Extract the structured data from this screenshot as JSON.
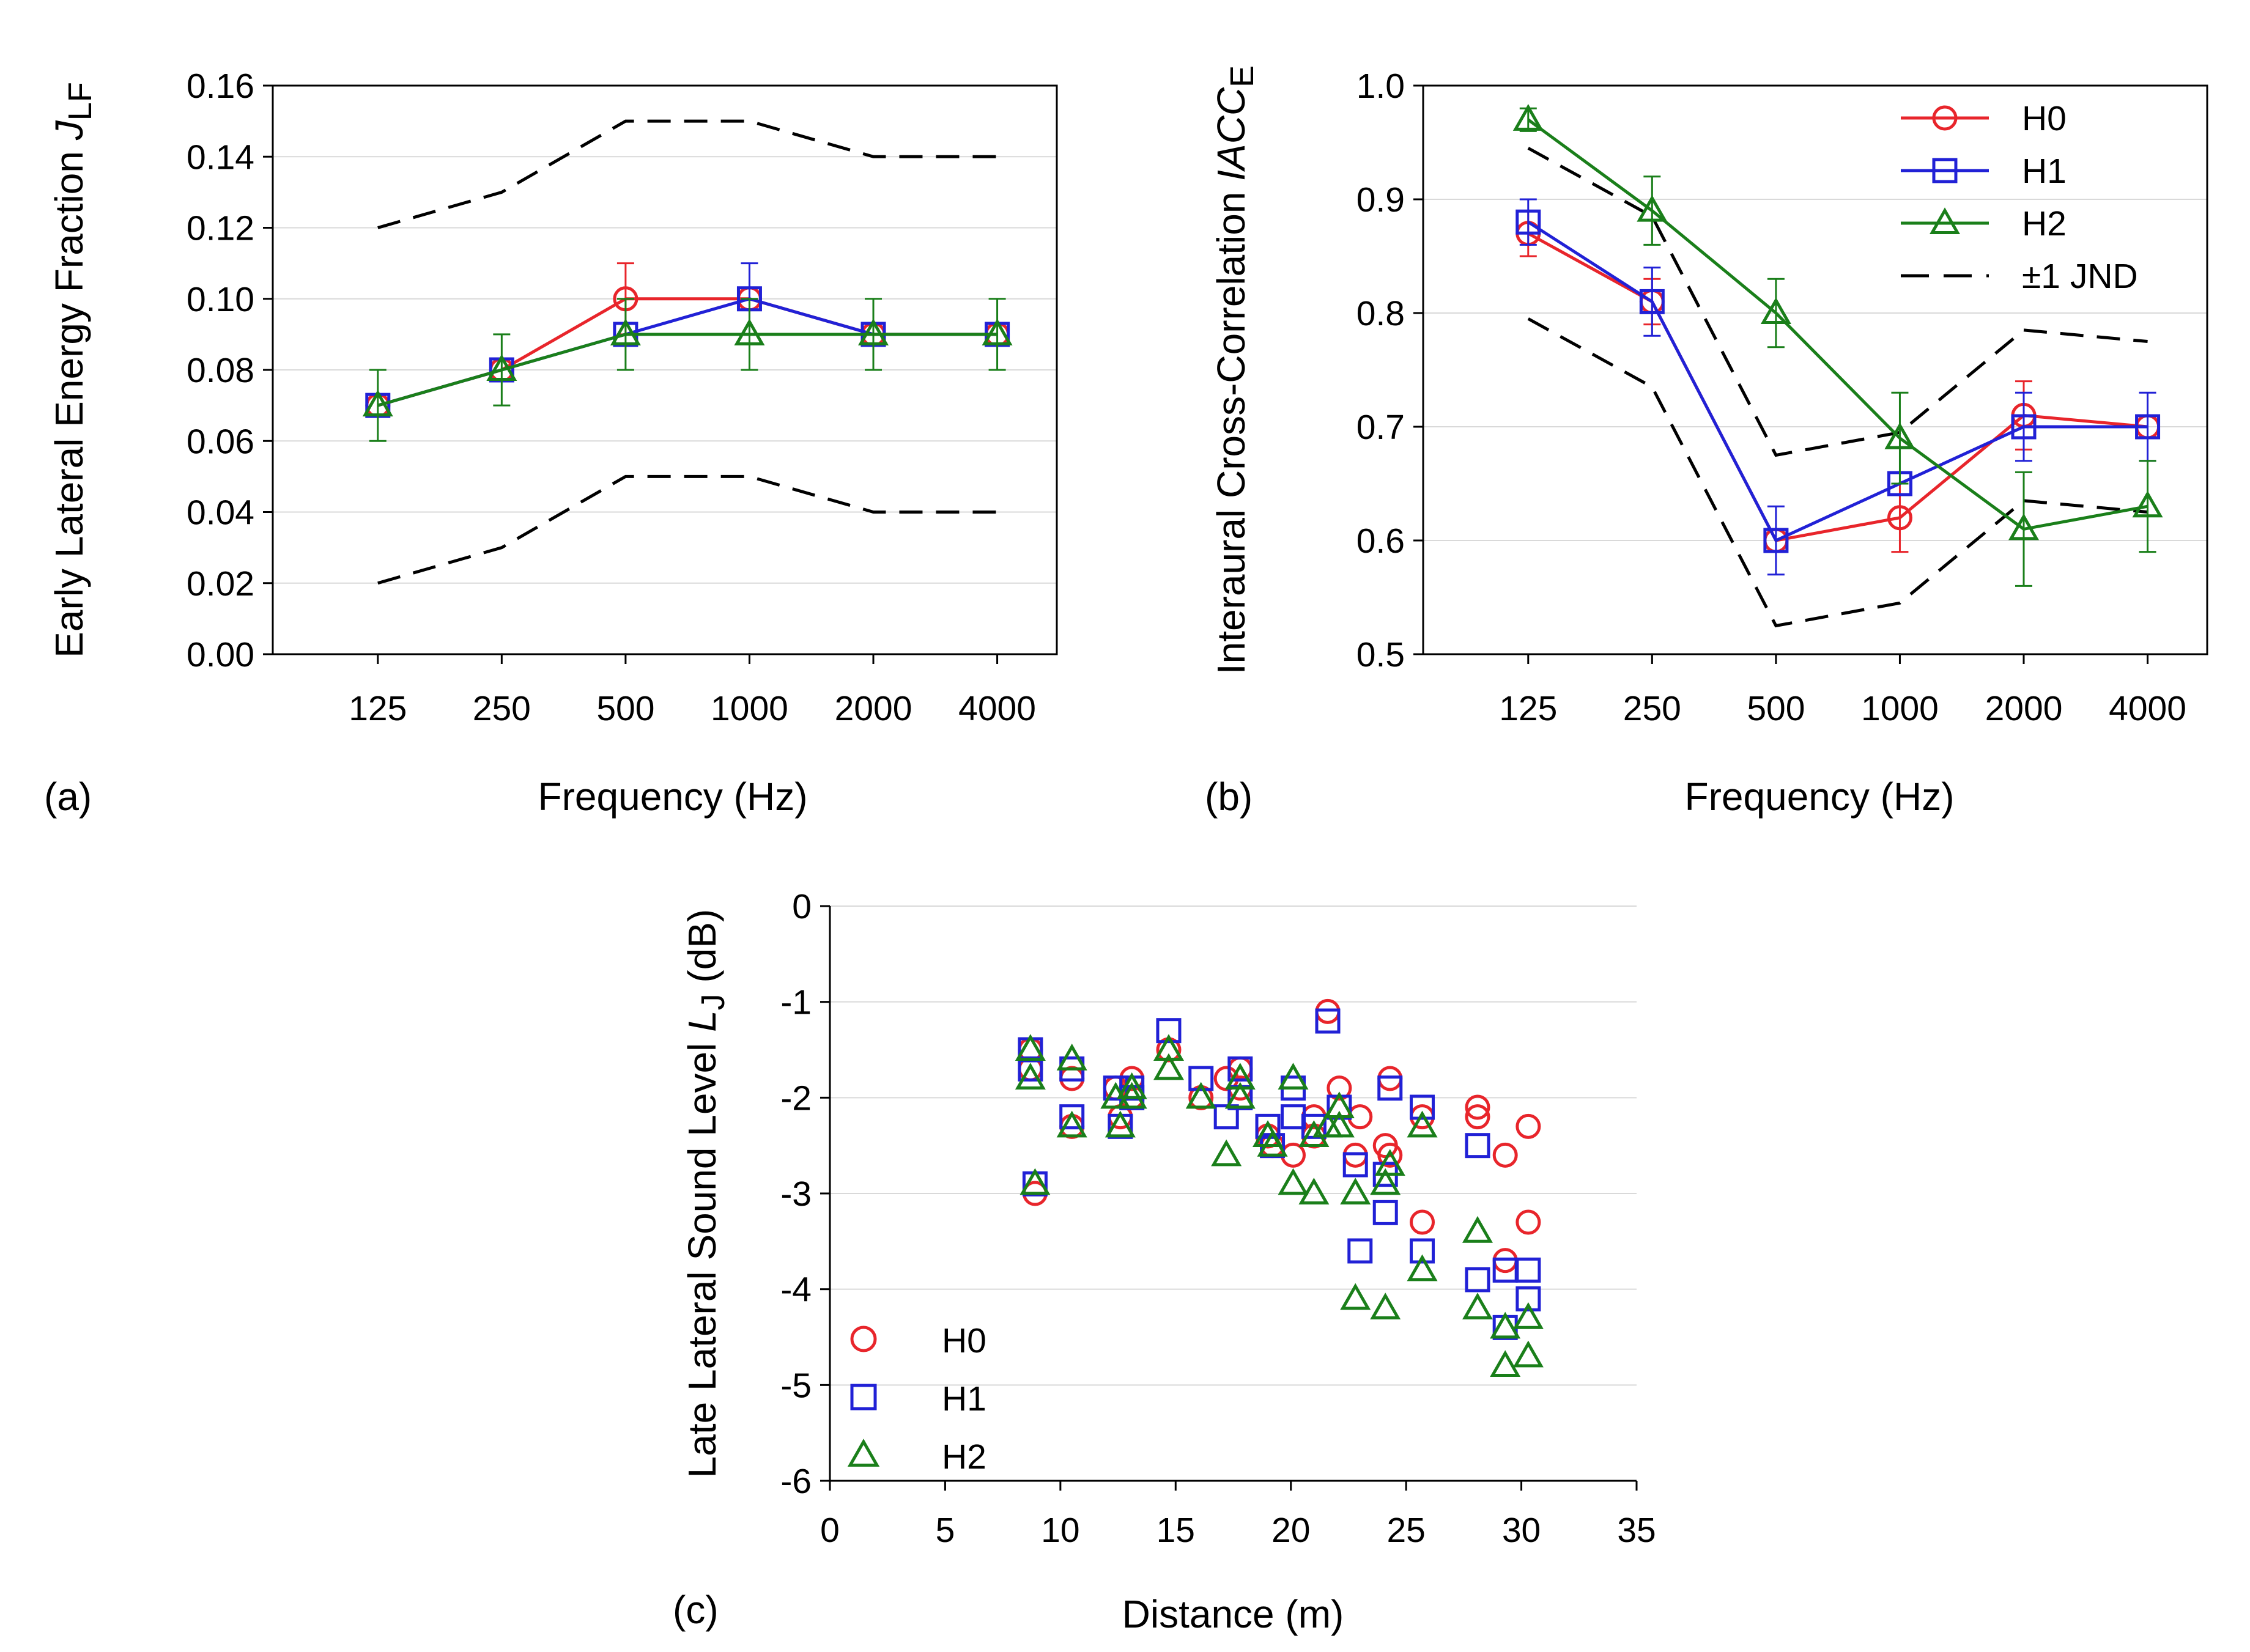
{
  "chart_data": [
    {
      "id": "a",
      "type": "line",
      "panel_label": "(a)",
      "title": "",
      "xlabel": "Frequency (Hz)",
      "ylabel_main": "Early Lateral Energy Fraction ",
      "ylabel_symbol": "J",
      "ylabel_sub": "LF",
      "categories": [
        "125",
        "250",
        "500",
        "1000",
        "2000",
        "4000"
      ],
      "ylim": [
        0,
        0.16
      ],
      "y_ticks": [
        "0.00",
        "0.02",
        "0.04",
        "0.06",
        "0.08",
        "0.10",
        "0.12",
        "0.14",
        "0.16"
      ],
      "grid": "horizontal",
      "series": [
        {
          "name": "H0",
          "color": "#e8252b",
          "marker": "circle",
          "values": [
            0.07,
            0.08,
            0.1,
            0.1,
            0.09,
            0.09
          ],
          "err": [
            0.0,
            0.0,
            0.01,
            0.0,
            0.0,
            0.0
          ]
        },
        {
          "name": "H1",
          "color": "#2121d6",
          "marker": "square",
          "values": [
            0.07,
            0.08,
            0.09,
            0.1,
            0.09,
            0.09
          ],
          "err": [
            0.0,
            0.0,
            0.0,
            0.01,
            0.0,
            0.0
          ]
        },
        {
          "name": "H2",
          "color": "#1a7f1a",
          "marker": "triangle",
          "values": [
            0.07,
            0.08,
            0.09,
            0.09,
            0.09,
            0.09
          ],
          "err": [
            0.01,
            0.01,
            0.01,
            0.01,
            0.01,
            0.01
          ]
        }
      ],
      "jnd": {
        "name": "±1 JND",
        "color": "#000000",
        "upper": [
          0.12,
          0.13,
          0.15,
          0.15,
          0.14,
          0.14
        ],
        "lower": [
          0.02,
          0.03,
          0.05,
          0.05,
          0.04,
          0.04
        ]
      }
    },
    {
      "id": "b",
      "type": "line",
      "panel_label": "(b)",
      "title": "",
      "xlabel": "Frequency (Hz)",
      "ylabel_main": "Interaural Cross-Correlation ",
      "ylabel_symbol": "IACC",
      "ylabel_sub": "E",
      "categories": [
        "125",
        "250",
        "500",
        "1000",
        "2000",
        "4000"
      ],
      "ylim": [
        0.5,
        1.0
      ],
      "y_ticks": [
        "0.5",
        "0.6",
        "0.7",
        "0.8",
        "0.9",
        "1.0"
      ],
      "grid": "horizontal",
      "legend_position": "top-right",
      "series": [
        {
          "name": "H0",
          "color": "#e8252b",
          "marker": "circle",
          "values": [
            0.87,
            0.81,
            0.6,
            0.62,
            0.71,
            0.7
          ],
          "err": [
            0.02,
            0.02,
            0.0,
            0.03,
            0.03,
            0.0
          ]
        },
        {
          "name": "H1",
          "color": "#2121d6",
          "marker": "square",
          "values": [
            0.88,
            0.81,
            0.6,
            0.65,
            0.7,
            0.7
          ],
          "err": [
            0.02,
            0.03,
            0.03,
            0.0,
            0.03,
            0.03
          ]
        },
        {
          "name": "H2",
          "color": "#1a7f1a",
          "marker": "triangle",
          "values": [
            0.97,
            0.89,
            0.8,
            0.69,
            0.61,
            0.63
          ],
          "err": [
            0.01,
            0.03,
            0.03,
            0.04,
            0.05,
            0.04
          ]
        }
      ],
      "jnd": {
        "name": "±1 JND",
        "color": "#000000",
        "upper": [
          0.945,
          0.885,
          0.675,
          0.695,
          0.785,
          0.775
        ],
        "lower": [
          0.795,
          0.735,
          0.525,
          0.545,
          0.635,
          0.625
        ]
      }
    },
    {
      "id": "c",
      "type": "scatter",
      "panel_label": "(c)",
      "title": "",
      "xlabel": "Distance (m)",
      "ylabel_main": "Late Lateral Sound Level ",
      "ylabel_symbol": "L",
      "ylabel_sub": "J",
      "ylabel_unit": " (dB)",
      "xlim": [
        0,
        35
      ],
      "ylim": [
        -6,
        0
      ],
      "x_ticks": [
        "0",
        "5",
        "10",
        "15",
        "20",
        "25",
        "30",
        "35"
      ],
      "y_ticks": [
        "-6",
        "-5",
        "-4",
        "-3",
        "-2",
        "-1",
        "0"
      ],
      "grid": "horizontal",
      "legend_position": "bottom-left",
      "series": [
        {
          "name": "H0",
          "color": "#e8252b",
          "marker": "circle",
          "points": [
            [
              8.7,
              -1.5
            ],
            [
              8.7,
              -1.7
            ],
            [
              8.9,
              -3.0
            ],
            [
              10.5,
              -1.8
            ],
            [
              10.5,
              -2.3
            ],
            [
              12.4,
              -1.9
            ],
            [
              12.6,
              -2.2
            ],
            [
              13.1,
              -1.8
            ],
            [
              13.1,
              -2.0
            ],
            [
              14.7,
              -1.5
            ],
            [
              16.1,
              -2.0
            ],
            [
              17.2,
              -1.8
            ],
            [
              17.8,
              -1.7
            ],
            [
              17.8,
              -1.9
            ],
            [
              19.0,
              -2.4
            ],
            [
              19.2,
              -2.5
            ],
            [
              20.1,
              -2.6
            ],
            [
              21.0,
              -2.2
            ],
            [
              21.0,
              -2.4
            ],
            [
              21.6,
              -1.1
            ],
            [
              22.1,
              -1.9
            ],
            [
              22.8,
              -2.6
            ],
            [
              23.0,
              -2.2
            ],
            [
              24.1,
              -2.5
            ],
            [
              24.3,
              -1.8
            ],
            [
              24.3,
              -2.6
            ],
            [
              25.7,
              -2.2
            ],
            [
              25.7,
              -3.3
            ],
            [
              28.1,
              -2.1
            ],
            [
              28.1,
              -2.2
            ],
            [
              29.3,
              -2.6
            ],
            [
              29.3,
              -3.7
            ],
            [
              30.3,
              -2.3
            ],
            [
              30.3,
              -3.3
            ]
          ]
        },
        {
          "name": "H1",
          "color": "#2121d6",
          "marker": "square",
          "points": [
            [
              8.7,
              -1.5
            ],
            [
              8.7,
              -1.7
            ],
            [
              8.9,
              -2.9
            ],
            [
              10.5,
              -1.7
            ],
            [
              10.5,
              -2.2
            ],
            [
              12.4,
              -1.9
            ],
            [
              12.6,
              -2.3
            ],
            [
              13.1,
              -1.9
            ],
            [
              13.1,
              -2.0
            ],
            [
              14.7,
              -1.3
            ],
            [
              16.1,
              -1.8
            ],
            [
              17.2,
              -2.2
            ],
            [
              17.8,
              -1.7
            ],
            [
              17.8,
              -2.0
            ],
            [
              19.0,
              -2.3
            ],
            [
              19.2,
              -2.5
            ],
            [
              20.1,
              -2.2
            ],
            [
              20.1,
              -1.9
            ],
            [
              21.0,
              -2.3
            ],
            [
              21.6,
              -1.2
            ],
            [
              22.1,
              -2.1
            ],
            [
              22.8,
              -2.7
            ],
            [
              23.0,
              -3.6
            ],
            [
              24.1,
              -2.8
            ],
            [
              24.1,
              -3.2
            ],
            [
              24.3,
              -1.9
            ],
            [
              25.7,
              -2.1
            ],
            [
              25.7,
              -3.6
            ],
            [
              28.1,
              -2.5
            ],
            [
              28.1,
              -3.9
            ],
            [
              29.3,
              -3.8
            ],
            [
              29.3,
              -4.4
            ],
            [
              30.3,
              -3.8
            ],
            [
              30.3,
              -4.1
            ]
          ]
        },
        {
          "name": "H2",
          "color": "#1a7f1a",
          "marker": "triangle",
          "points": [
            [
              8.7,
              -1.5
            ],
            [
              8.7,
              -1.8
            ],
            [
              8.9,
              -2.9
            ],
            [
              10.5,
              -1.6
            ],
            [
              10.5,
              -2.3
            ],
            [
              12.4,
              -2.0
            ],
            [
              12.6,
              -2.3
            ],
            [
              13.1,
              -1.9
            ],
            [
              13.1,
              -2.0
            ],
            [
              14.7,
              -1.5
            ],
            [
              14.7,
              -1.7
            ],
            [
              16.1,
              -2.0
            ],
            [
              17.2,
              -2.6
            ],
            [
              17.8,
              -1.8
            ],
            [
              17.8,
              -2.0
            ],
            [
              19.0,
              -2.4
            ],
            [
              19.2,
              -2.5
            ],
            [
              20.1,
              -1.8
            ],
            [
              20.1,
              -2.9
            ],
            [
              21.0,
              -2.4
            ],
            [
              21.0,
              -3.0
            ],
            [
              21.6,
              -2.3
            ],
            [
              22.1,
              -2.1
            ],
            [
              22.1,
              -2.3
            ],
            [
              22.8,
              -3.0
            ],
            [
              22.8,
              -4.1
            ],
            [
              24.1,
              -2.9
            ],
            [
              24.1,
              -4.2
            ],
            [
              24.3,
              -2.7
            ],
            [
              25.7,
              -2.3
            ],
            [
              25.7,
              -3.8
            ],
            [
              28.1,
              -3.4
            ],
            [
              28.1,
              -4.2
            ],
            [
              29.3,
              -4.4
            ],
            [
              29.3,
              -4.8
            ],
            [
              30.3,
              -4.3
            ],
            [
              30.3,
              -4.7
            ]
          ]
        }
      ]
    }
  ]
}
